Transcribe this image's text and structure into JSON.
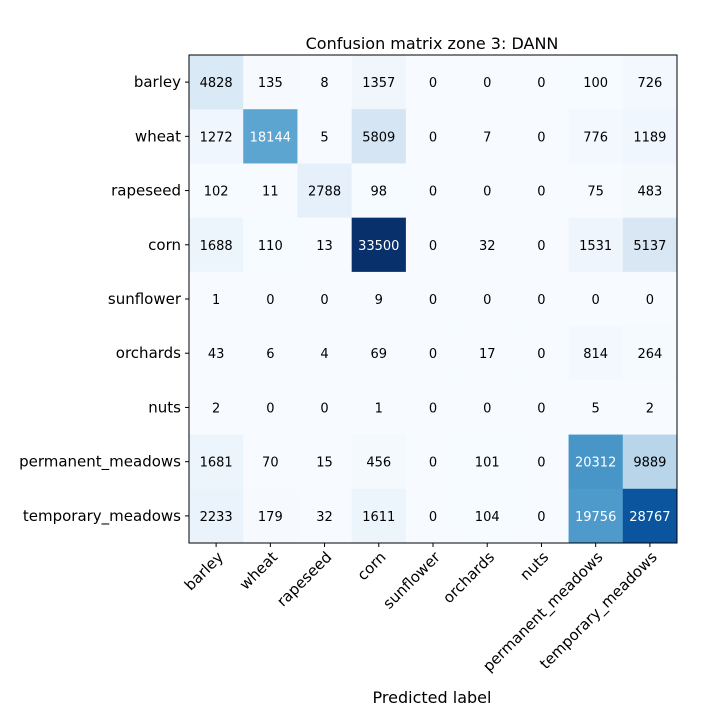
{
  "chart_data": {
    "type": "heatmap",
    "title": "Confusion matrix zone 3: DANN",
    "xlabel": "Predicted label",
    "ylabel": "",
    "colormap": "Blues",
    "rows": [
      "barley",
      "wheat",
      "rapeseed",
      "corn",
      "sunflower",
      "orchards",
      "nuts",
      "permanent_meadows",
      "temporary_meadows"
    ],
    "columns": [
      "barley",
      "wheat",
      "rapeseed",
      "corn",
      "sunflower",
      "orchards",
      "nuts",
      "permanent_meadows",
      "temporary_meadows"
    ],
    "values": [
      [
        4828,
        135,
        8,
        1357,
        0,
        0,
        0,
        100,
        726
      ],
      [
        1272,
        18144,
        5,
        5809,
        0,
        7,
        0,
        776,
        1189
      ],
      [
        102,
        11,
        2788,
        98,
        0,
        0,
        0,
        75,
        483
      ],
      [
        1688,
        110,
        13,
        33500,
        0,
        32,
        0,
        1531,
        5137
      ],
      [
        1,
        0,
        0,
        9,
        0,
        0,
        0,
        0,
        0
      ],
      [
        43,
        6,
        4,
        69,
        0,
        17,
        0,
        814,
        264
      ],
      [
        2,
        0,
        0,
        1,
        0,
        0,
        0,
        5,
        2
      ],
      [
        1681,
        70,
        15,
        456,
        0,
        101,
        0,
        20312,
        9889
      ],
      [
        2233,
        179,
        32,
        1611,
        0,
        104,
        0,
        19756,
        28767
      ]
    ],
    "vmin": 0,
    "vmax": 33500
  }
}
